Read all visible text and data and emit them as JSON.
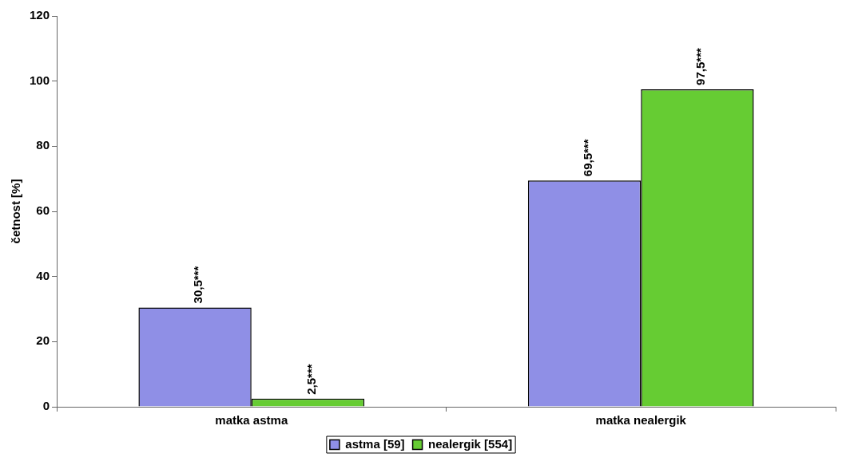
{
  "chart_data": {
    "type": "bar",
    "categories": [
      "matka astma",
      "matka nealergik"
    ],
    "ylabel": "četnost [%]",
    "ylim": [
      0,
      120
    ],
    "yticks": [
      0,
      20,
      40,
      60,
      80,
      100,
      120
    ],
    "series": [
      {
        "name": "astma [59]",
        "color": "#8f8fe6",
        "values": [
          30.5,
          69.5
        ],
        "value_labels": [
          "30,5***",
          "69,5***"
        ]
      },
      {
        "name": "nealergik [554]",
        "color": "#66cc33",
        "values": [
          2.5,
          97.5
        ],
        "value_labels": [
          "2,5***",
          "97,5***"
        ]
      }
    ],
    "grid": false,
    "legend": "bottom"
  }
}
